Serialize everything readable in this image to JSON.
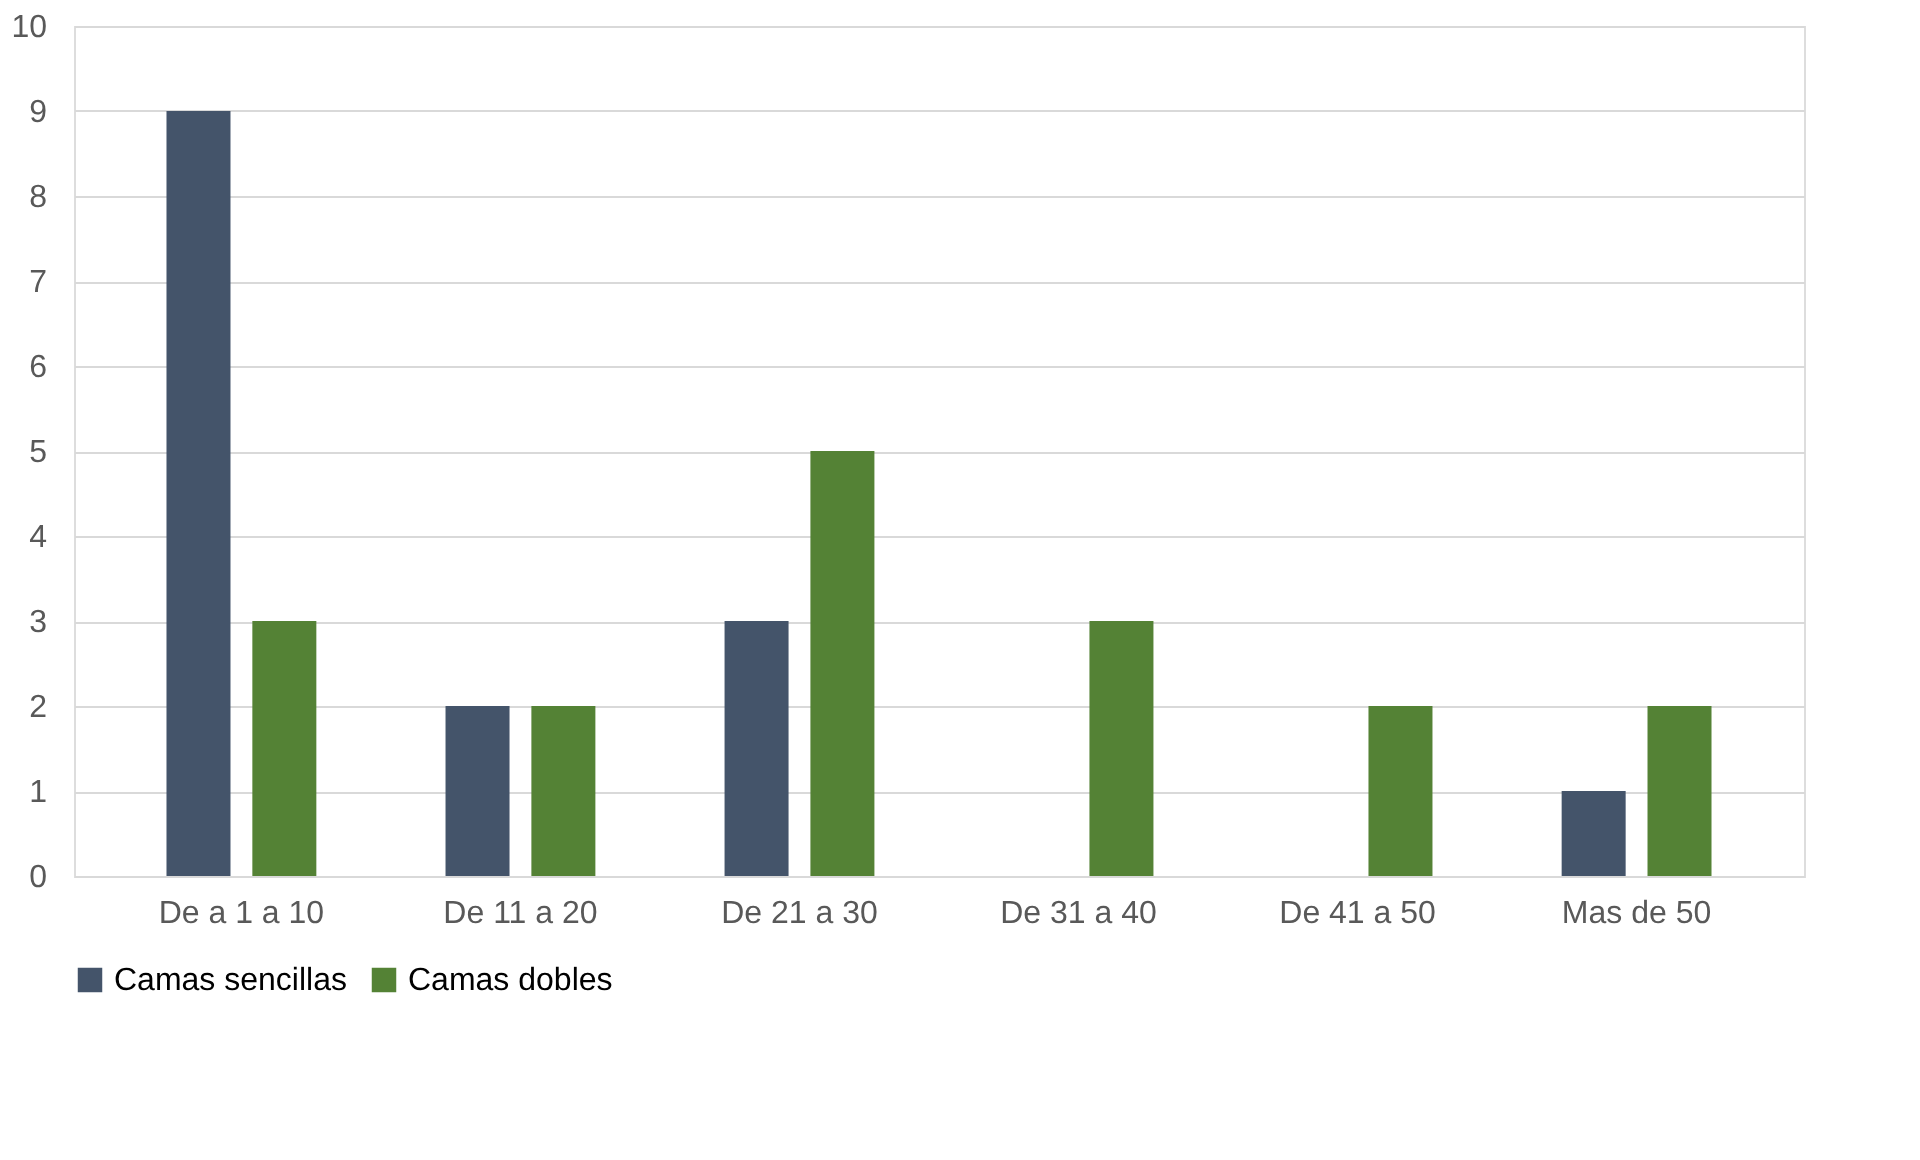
{
  "chart_data": {
    "type": "bar",
    "categories": [
      "De a 1 a 10",
      "De 11 a 20",
      "De 21 a 30",
      "De 31 a 40",
      "De 41 a 50",
      "Mas de 50"
    ],
    "series": [
      {
        "name": "Camas sencillas",
        "color": "#44546a",
        "values": [
          9,
          2,
          3,
          0,
          0,
          1
        ]
      },
      {
        "name": "Camas dobles",
        "color": "#548235",
        "values": [
          3,
          2,
          5,
          3,
          2,
          2
        ]
      }
    ],
    "ylim": [
      0,
      10
    ],
    "yticks": [
      0,
      1,
      2,
      3,
      4,
      5,
      6,
      7,
      8,
      9,
      10
    ],
    "grid": "y",
    "legend": "bottom"
  }
}
